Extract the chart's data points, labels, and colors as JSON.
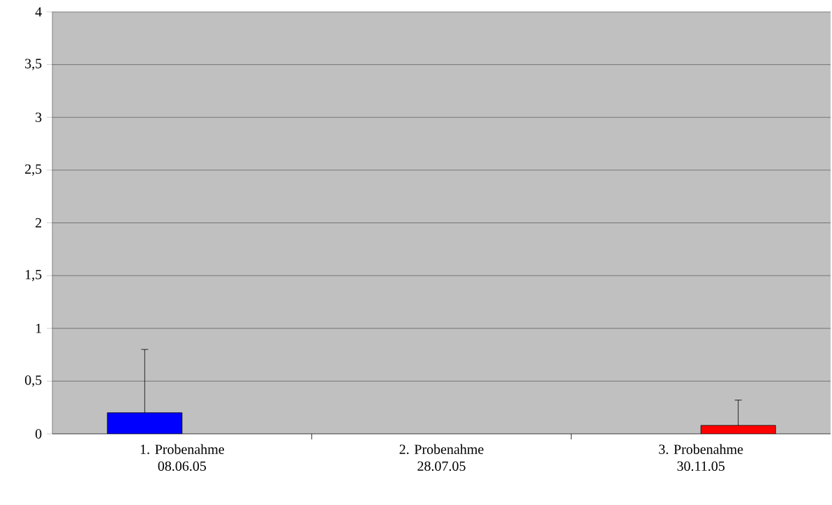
{
  "chart_data": {
    "type": "bar",
    "categories": [
      "1. Probenahme 08.06.05",
      "2. Probenahme 28.07.05",
      "3. Probenahme 30.11.05"
    ],
    "values": [
      0.2,
      null,
      0.08
    ],
    "colors": [
      "#0000ff",
      null,
      "#ff0000"
    ],
    "errors": [
      [
        0.2,
        0.8
      ],
      null,
      [
        0.08,
        0.32
      ]
    ],
    "ylim": [
      0,
      4
    ],
    "yticks": [
      0,
      {
        "value": 0.5,
        "label": "0,5"
      },
      1,
      {
        "value": 1.5,
        "label": "1,5"
      },
      2,
      {
        "value": 2.5,
        "label": "2,5"
      },
      3,
      {
        "value": 3.5,
        "label": "3,5"
      },
      4
    ],
    "grid": "y"
  }
}
